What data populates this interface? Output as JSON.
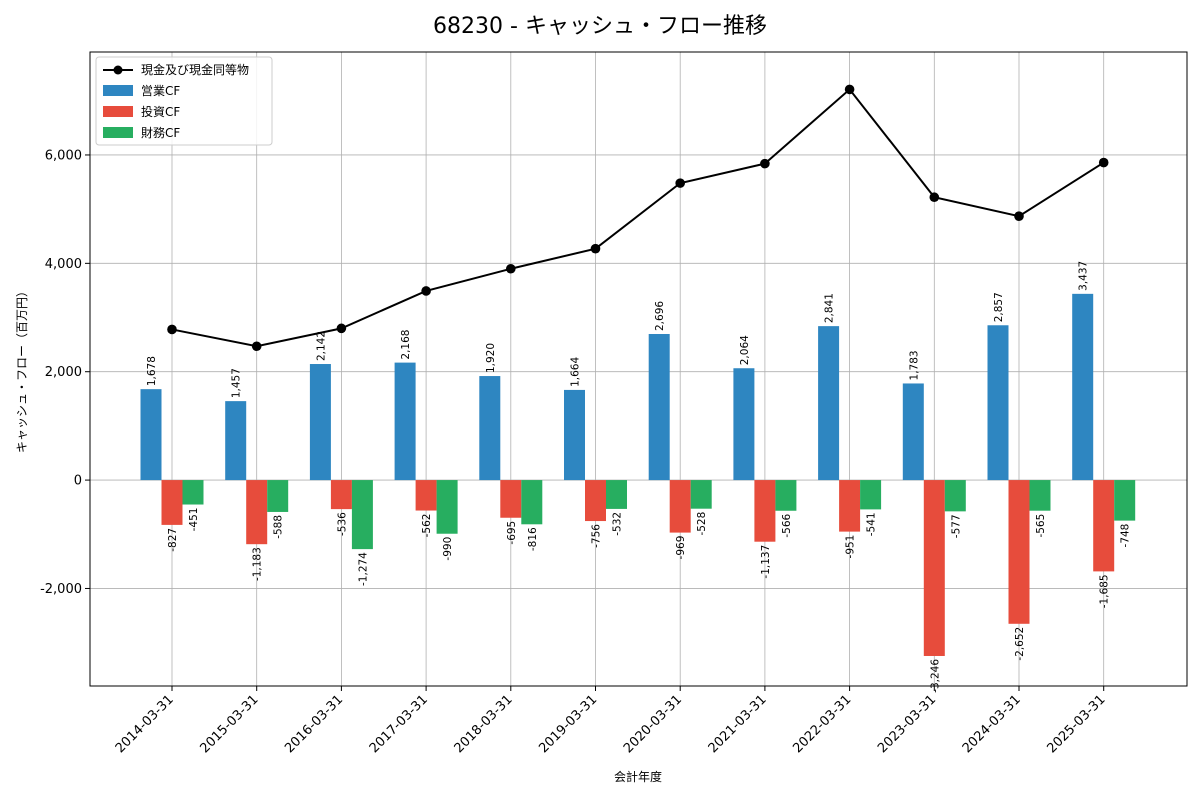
{
  "chart_data": {
    "type": "bar",
    "title": "68230 - キャッシュ・フロー推移",
    "xlabel": "会計年度",
    "ylabel": "キャッシュ・フロー（百万円）",
    "categories": [
      "2014-03-31",
      "2015-03-31",
      "2016-03-31",
      "2017-03-31",
      "2018-03-31",
      "2019-03-31",
      "2020-03-31",
      "2021-03-31",
      "2022-03-31",
      "2023-03-31",
      "2024-03-31",
      "2025-03-31"
    ],
    "series": [
      {
        "name": "営業CF",
        "type": "bar",
        "color": "#2e86c1",
        "values": [
          1678,
          1457,
          2142,
          2168,
          1920,
          1664,
          2696,
          2064,
          2841,
          1783,
          2857,
          3437
        ],
        "labels": [
          "1,678",
          "1,457",
          "2,142",
          "2,168",
          "1,920",
          "1,664",
          "2,696",
          "2,064",
          "2,841",
          "1,783",
          "2,857",
          "3,437"
        ]
      },
      {
        "name": "投資CF",
        "type": "bar",
        "color": "#e74c3c",
        "values": [
          -827,
          -1183,
          -536,
          -562,
          -695,
          -756,
          -969,
          -1137,
          -951,
          -3246,
          -2652,
          -1685
        ],
        "labels": [
          "-827",
          "-1,183",
          "-536",
          "-562",
          "-695",
          "-756",
          "-969",
          "-1,137",
          "-951",
          "-3,246",
          "-2,652",
          "-1,685"
        ]
      },
      {
        "name": "財務CF",
        "type": "bar",
        "color": "#27ae60",
        "values": [
          -451,
          -588,
          -1274,
          -990,
          -816,
          -532,
          -528,
          -566,
          -541,
          -577,
          -565,
          -748
        ],
        "labels": [
          "-451",
          "-588",
          "-1,274",
          "-990",
          "-816",
          "-532",
          "-528",
          "-566",
          "-541",
          "-577",
          "-565",
          "-748"
        ]
      },
      {
        "name": "現金及び現金同等物",
        "type": "line",
        "color": "#000000",
        "values": [
          2780,
          2470,
          2800,
          3490,
          3900,
          4270,
          5480,
          5840,
          7210,
          5220,
          4870,
          5860
        ]
      }
    ],
    "ylim": [
      -3800,
      7900
    ],
    "yticks": [
      -2000,
      0,
      2000,
      4000,
      6000
    ],
    "ytick_labels": [
      "-2,000",
      "0",
      "2,000",
      "4,000",
      "6,000"
    ],
    "grid": true,
    "legend_position": "top-left"
  }
}
